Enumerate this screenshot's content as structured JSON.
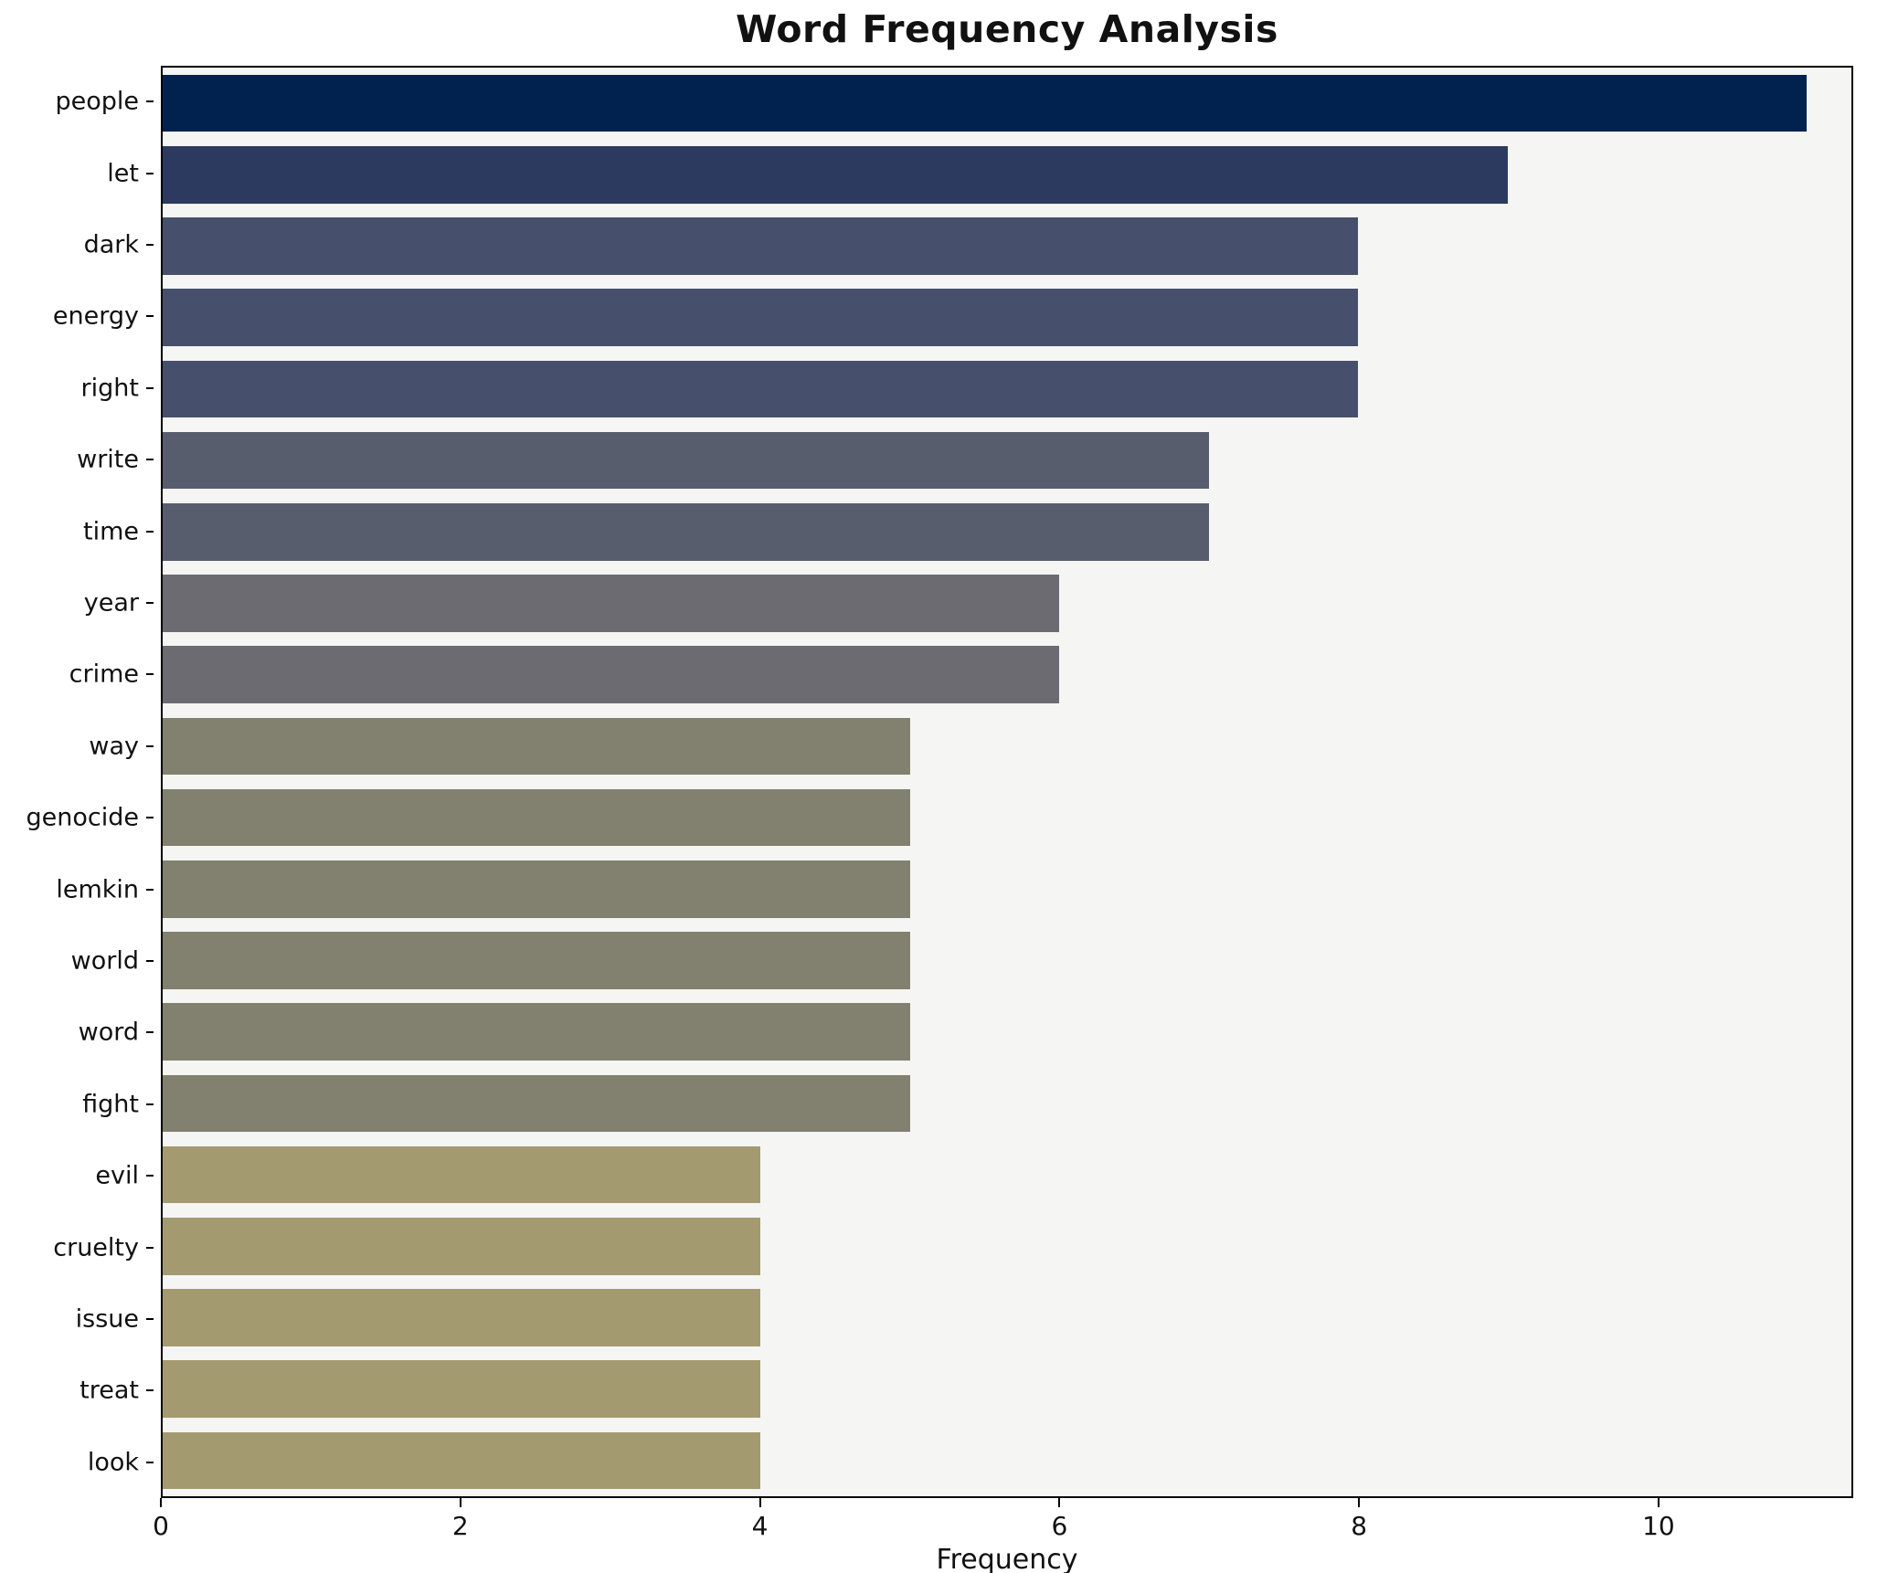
{
  "chart_data": {
    "type": "bar",
    "orientation": "horizontal",
    "title": "Word Frequency Analysis",
    "xlabel": "Frequency",
    "ylabel": "",
    "categories": [
      "people",
      "let",
      "dark",
      "energy",
      "right",
      "write",
      "time",
      "year",
      "crime",
      "way",
      "genocide",
      "lemkin",
      "world",
      "word",
      "fight",
      "evil",
      "cruelty",
      "issue",
      "treat",
      "look"
    ],
    "values": [
      11,
      9,
      8,
      8,
      8,
      7,
      7,
      6,
      6,
      5,
      5,
      5,
      5,
      5,
      5,
      4,
      4,
      4,
      4,
      4
    ],
    "bar_colors": [
      "#01224e",
      "#2c3a60",
      "#46506c",
      "#46506c",
      "#46506c",
      "#585d6e",
      "#585d6e",
      "#6c6b71",
      "#6c6b71",
      "#82806f",
      "#82806f",
      "#82806f",
      "#82806f",
      "#82806f",
      "#82806f",
      "#a39a6f",
      "#a39a6f",
      "#a39a6f",
      "#a39a6f",
      "#a39a6f"
    ],
    "xlim": [
      0,
      11.3
    ],
    "xticks": [
      0,
      2,
      4,
      6,
      8,
      10
    ],
    "grid": false,
    "legend": null,
    "plot_background": "#f5f5f4",
    "figure_background": "#ffffff"
  }
}
